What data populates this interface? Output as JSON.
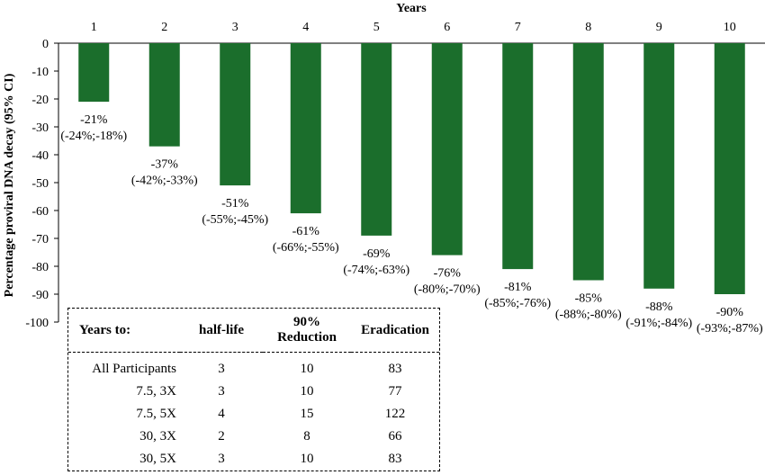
{
  "chart_data": {
    "type": "bar",
    "xlabel": "Years",
    "ylabel": "Percentage proviral DNA decay (95% CI)",
    "categories": [
      "1",
      "2",
      "3",
      "4",
      "5",
      "6",
      "7",
      "8",
      "9",
      "10"
    ],
    "values": [
      -21,
      -37,
      -51,
      -61,
      -69,
      -76,
      -81,
      -85,
      -88,
      -90
    ],
    "ylim": [
      -100,
      0
    ],
    "yticks": [
      "0",
      "-10",
      "-20",
      "-30",
      "-40",
      "-50",
      "-60",
      "-70",
      "-80",
      "-90",
      "-100"
    ],
    "bar_color": "#1b6e2c",
    "labels": [
      {
        "pct": "-21%",
        "ci": "(-24%;-18%)"
      },
      {
        "pct": "-37%",
        "ci": "(-42%;-33%)"
      },
      {
        "pct": "-51%",
        "ci": "(-55%;-45%)"
      },
      {
        "pct": "-61%",
        "ci": "(-66%;-55%)"
      },
      {
        "pct": "-69%",
        "ci": "(-74%;-63%)"
      },
      {
        "pct": "-76%",
        "ci": "(-80%;-70%)"
      },
      {
        "pct": "-81%",
        "ci": "(-85%;-76%)"
      },
      {
        "pct": "-85%",
        "ci": "(-88%;-80%)"
      },
      {
        "pct": "-88%",
        "ci": "(-91%;-84%)"
      },
      {
        "pct": "-90%",
        "ci": "(-93%;-87%)"
      }
    ]
  },
  "table": {
    "headers": [
      "Years to:",
      "half-life",
      "90% Reduction",
      "Eradication"
    ],
    "rows": [
      [
        "All Participants",
        "3",
        "10",
        "83"
      ],
      [
        "7.5, 3X",
        "3",
        "10",
        "77"
      ],
      [
        "7.5, 5X",
        "4",
        "15",
        "122"
      ],
      [
        "30, 3X",
        "2",
        "8",
        "66"
      ],
      [
        "30, 5X",
        "3",
        "10",
        "83"
      ]
    ]
  }
}
